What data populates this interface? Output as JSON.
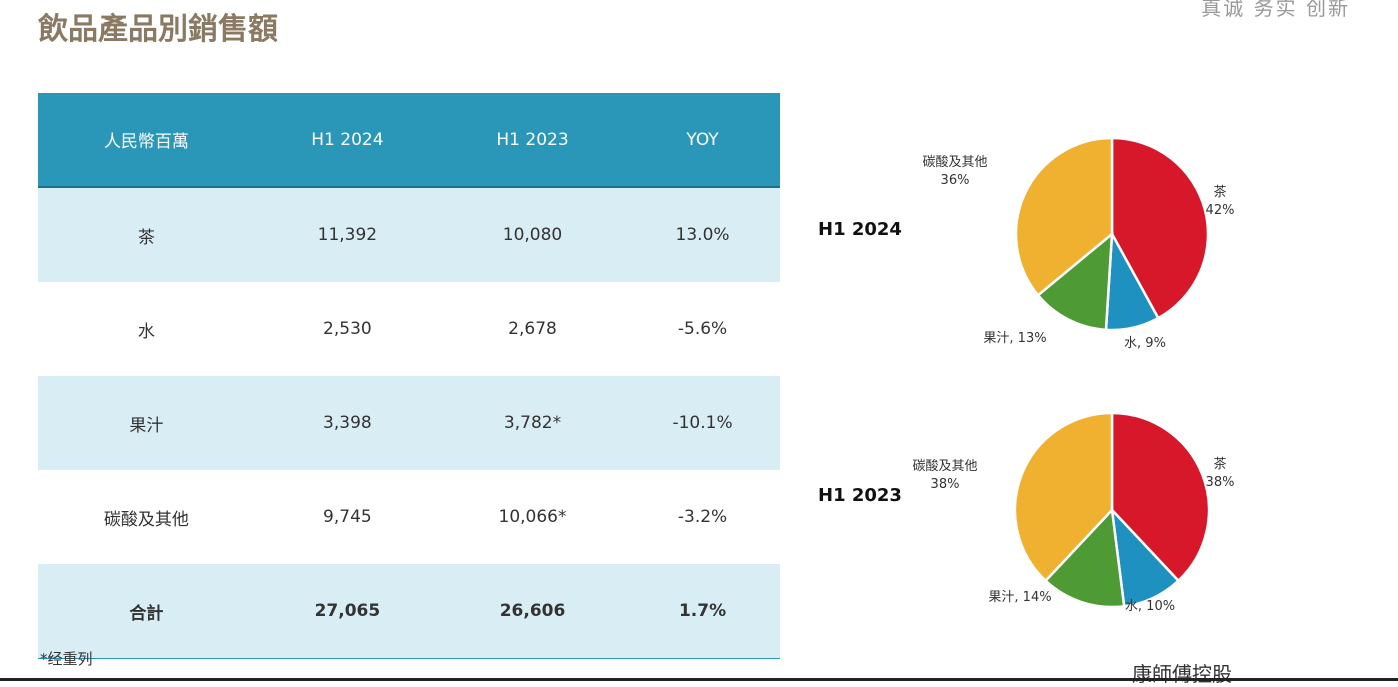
{
  "title": "飲品產品別銷售額",
  "slogan": "真诚 务实 创新",
  "table": {
    "headers": [
      "人民幣百萬",
      "H1 2024",
      "H1 2023",
      "YOY"
    ],
    "rows": [
      [
        "茶",
        "11,392",
        "10,080",
        "13.0%"
      ],
      [
        "水",
        "2,530",
        "2,678",
        "-5.6%"
      ],
      [
        "果汁",
        "3,398",
        "3,782*",
        "-10.1%"
      ],
      [
        "碳酸及其他",
        "9,745",
        "10,066*",
        "-3.2%"
      ],
      [
        "合計",
        "27,065",
        "26,606",
        "1.7%"
      ]
    ]
  },
  "note": "*经重列",
  "logo_text": "康師傅控股",
  "chart_data": [
    {
      "type": "pie",
      "title": "H1 2024",
      "categories": [
        "茶",
        "水",
        "果汁",
        "碳酸及其他"
      ],
      "values": [
        42,
        9,
        13,
        36
      ],
      "labels": [
        "茶\n42%",
        "水, 9%",
        "果汁, 13%",
        "碳酸及其他\n36%"
      ],
      "colors": [
        "#d7182a",
        "#1f91c0",
        "#4e9a34",
        "#f0b030"
      ]
    },
    {
      "type": "pie",
      "title": "H1 2023",
      "categories": [
        "茶",
        "水",
        "果汁",
        "碳酸及其他"
      ],
      "values": [
        38,
        10,
        14,
        38
      ],
      "labels": [
        "茶\n38%",
        "水, 10%",
        "果汁, 14%",
        "碳酸及其他\n38%"
      ],
      "colors": [
        "#d7182a",
        "#1f91c0",
        "#4e9a34",
        "#f0b030"
      ]
    }
  ]
}
